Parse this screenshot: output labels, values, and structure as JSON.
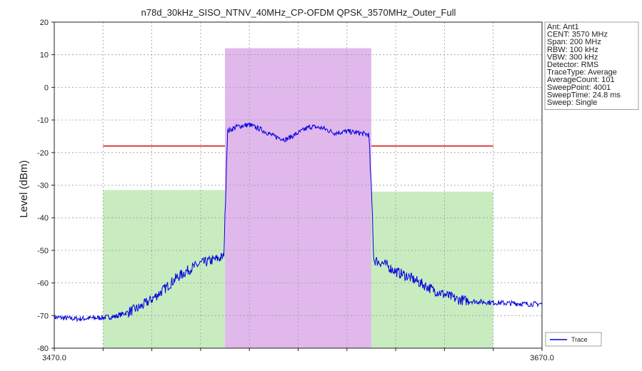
{
  "chart_data": {
    "type": "line",
    "title": "n78d_30kHz_SISO_NTNV_40MHz_CP-OFDM QPSK_3570MHz_Outer_Full",
    "ylabel": "Level (dBm)",
    "xlabel": "",
    "xlim": [
      3470.0,
      3670.0
    ],
    "ylim": [
      -80,
      20
    ],
    "x_tick_labels": [
      "3470.0",
      "3670.0"
    ],
    "y_ticks": [
      20,
      10,
      0,
      -10,
      -20,
      -30,
      -40,
      -50,
      -60,
      -70,
      -80
    ],
    "grid": true,
    "legend_position": "bottom-right",
    "series": [
      {
        "name": "Trace",
        "color": "#0000dd",
        "x": [
          3470,
          3475,
          3480,
          3485,
          3490,
          3495,
          3500,
          3505,
          3510,
          3515,
          3520,
          3525,
          3530,
          3535,
          3539.5,
          3540,
          3541,
          3545,
          3550,
          3555,
          3560,
          3565,
          3570,
          3575,
          3580,
          3585,
          3590,
          3595,
          3599,
          3600.5,
          3601,
          3605,
          3610,
          3615,
          3620,
          3625,
          3630,
          3635,
          3640,
          3645,
          3650,
          3655,
          3660,
          3665,
          3670
        ],
        "values": [
          -70.5,
          -70.8,
          -71.0,
          -70.8,
          -70.6,
          -70.3,
          -69.0,
          -67.5,
          -65.0,
          -62.0,
          -58.5,
          -56.0,
          -54.0,
          -53.0,
          -52.0,
          -40.0,
          -13.5,
          -12.0,
          -11.5,
          -13.0,
          -15.0,
          -16.0,
          -14.0,
          -12.0,
          -12.5,
          -14.0,
          -13.5,
          -14.0,
          -14.5,
          -40.0,
          -53.0,
          -54.0,
          -56.5,
          -58.0,
          -60.0,
          -62.0,
          -63.5,
          -65.0,
          -65.5,
          -65.8,
          -66.0,
          -66.2,
          -66.3,
          -66.5,
          -66.4
        ]
      }
    ],
    "limit_line": {
      "color": "#dd2222",
      "segments": [
        {
          "x": [
            3490,
            3540
          ],
          "y": -18
        },
        {
          "x": [
            3600,
            3650
          ],
          "y": -18
        }
      ]
    },
    "regions": [
      {
        "x0": 3490,
        "x1": 3540,
        "ytop": -31.5,
        "color": "#c8ecc0"
      },
      {
        "x0": 3540,
        "x1": 3600,
        "ytop": 12,
        "color": "#e0b8ec"
      },
      {
        "x0": 3600,
        "x1": 3650,
        "ytop": -32,
        "color": "#c8ecc0"
      }
    ],
    "info_box": [
      "Ant: Ant1",
      "CENT: 3570 MHz",
      "Span: 200 MHz",
      "RBW: 100 kHz",
      "VBW: 300 kHz",
      "Detector: RMS",
      "TraceType: Average",
      "AverageCount: 101",
      "SweepPoint: 4001",
      "SweepTime: 24.8 ms",
      "Sweep: Single"
    ]
  }
}
